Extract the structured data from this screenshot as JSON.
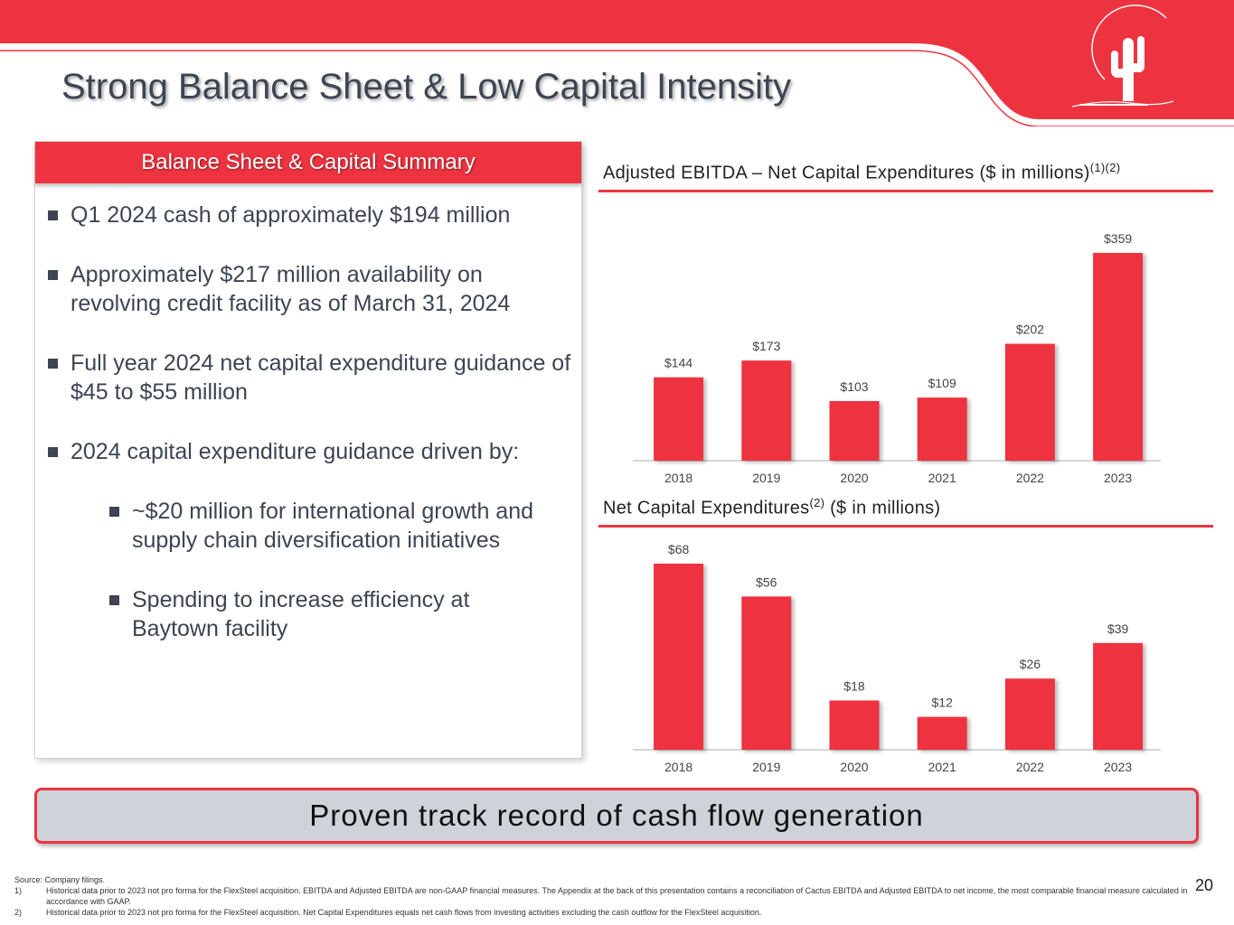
{
  "title": "Strong Balance Sheet & Low Capital Intensity",
  "panel": {
    "header": "Balance Sheet & Capital Summary",
    "bullets": [
      "Q1 2024 cash of approximately $194 million",
      "Approximately $217 million availability on revolving credit facility as of March 31, 2024",
      "Full year 2024 net capital expenditure guidance of $45 to $55 million",
      "2024 capital expenditure guidance driven by:"
    ],
    "sub_bullets": [
      "~$20 million for international growth and supply chain diversification initiatives",
      "Spending to increase efficiency at Baytown facility"
    ]
  },
  "charts_meta": [
    {
      "title": "Adjusted EBITDA – Net Capital Expenditures ($ in millions)",
      "title_sup": "(1)(2)"
    },
    {
      "title_main": "Net Capital Expenditures",
      "title_sup": "(2)",
      "title_rest": " ($ in millions)"
    }
  ],
  "chart_data": [
    {
      "type": "bar",
      "title": "Adjusted EBITDA – Net Capital Expenditures ($ in millions)(1)(2)",
      "categories": [
        "2018",
        "2019",
        "2020",
        "2021",
        "2022",
        "2023"
      ],
      "values": [
        144,
        173,
        103,
        109,
        202,
        359
      ],
      "labels": [
        "$144",
        "$173",
        "$103",
        "$109",
        "$202",
        "$359"
      ],
      "ylim": [
        0,
        359
      ],
      "grid": false,
      "color": "#ee3340"
    },
    {
      "type": "bar",
      "title": "Net Capital Expenditures(2) ($ in millions)",
      "categories": [
        "2018",
        "2019",
        "2020",
        "2021",
        "2022",
        "2023"
      ],
      "values": [
        68,
        56,
        18,
        12,
        26,
        39
      ],
      "labels": [
        "$68",
        "$56",
        "$18",
        "$12",
        "$26",
        "$39"
      ],
      "ylim": [
        0,
        68
      ],
      "grid": false,
      "color": "#ee3340"
    }
  ],
  "callout": "Proven track record of cash flow generation",
  "footnotes": {
    "source": "Source: Company filings.",
    "notes": [
      {
        "num": "1)",
        "text": "Historical data prior to 2023 not pro forma for the FlexSteel acquisition. EBITDA and Adjusted EBITDA are non-GAAP financial measures. The Appendix at the back of this presentation contains a reconciliation of Cactus EBITDA and Adjusted EBITDA to net income, the most comparable financial measure calculated in accordance with GAAP."
      },
      {
        "num": "2)",
        "text": "Historical data prior to 2023 not pro forma for the FlexSteel acquisition.  Net Capital Expenditures equals net cash flows from investing activities excluding the cash outflow for the FlexSteel acquisition."
      }
    ]
  },
  "page_number": "20",
  "colors": {
    "accent": "#ee3340",
    "text": "#3d4552",
    "callout_bg": "#cdd3d9"
  },
  "logo_icon": "cactus-sunset-icon"
}
